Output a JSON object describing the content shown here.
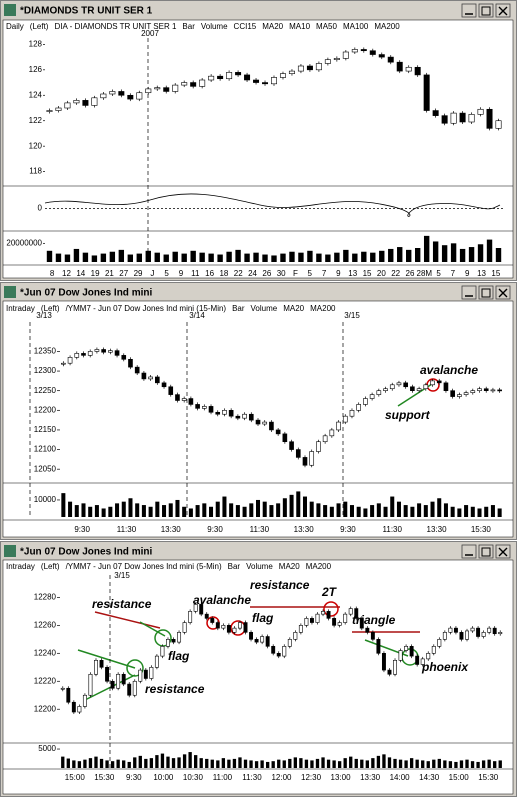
{
  "windows": [
    {
      "title": "*DIAMONDS TR UNIT SER 1",
      "header": [
        {
          "text": "Daily",
          "color": "#000000"
        },
        {
          "text": "(Left)",
          "color": "#000000"
        },
        {
          "text": "DIA - DIAMONDS TR UNIT SER 1",
          "color": "#000000"
        },
        {
          "text": "Bar",
          "color": "#000000"
        },
        {
          "text": "Volume",
          "color": "#000000"
        },
        {
          "text": "CCI15",
          "color": "#000000"
        },
        {
          "text": "MA20",
          "color": "#cc0000"
        },
        {
          "text": "MA10",
          "color": "#008800"
        },
        {
          "text": "MA50",
          "color": "#888800"
        },
        {
          "text": "MA100",
          "color": "#0000cc"
        },
        {
          "text": "MA200",
          "color": "#cc00cc"
        }
      ],
      "period_labels": [
        "2007"
      ],
      "ylim": [
        117.5,
        128.5
      ],
      "yticks": [
        118,
        120,
        122,
        124,
        126,
        128
      ],
      "cci_tick": 0,
      "vlim": [
        0,
        30000000
      ],
      "vtick": 20000000,
      "xlabels": [
        "8",
        "12",
        "14",
        "19",
        "21",
        "27",
        "29",
        "J",
        "5",
        "9",
        "11",
        "16",
        "18",
        "22",
        "24",
        "26",
        "30",
        "F",
        "5",
        "7",
        "9",
        "13",
        "15",
        "20",
        "22",
        "26",
        "28M",
        "5",
        "7",
        "9",
        "13",
        "15"
      ],
      "prices": [
        122.8,
        123.0,
        123.4,
        123.6,
        123.2,
        123.8,
        124.1,
        124.3,
        124.0,
        123.7,
        124.2,
        124.5,
        124.6,
        124.3,
        124.8,
        125.0,
        124.7,
        125.2,
        125.5,
        125.3,
        125.8,
        125.6,
        125.2,
        125.0,
        124.9,
        125.4,
        125.7,
        125.9,
        126.3,
        126.0,
        126.5,
        126.8,
        126.9,
        127.4,
        127.6,
        127.5,
        127.2,
        127.0,
        126.6,
        125.9,
        126.2,
        125.6,
        122.8,
        122.4,
        121.8,
        122.6,
        121.9,
        122.5,
        122.9,
        121.4,
        122.0
      ],
      "volumes": [
        12000000,
        9000000,
        8000000,
        14000000,
        10000000,
        7000000,
        9000000,
        11000000,
        13000000,
        8000000,
        9000000,
        12000000,
        10000000,
        8000000,
        11000000,
        9000000,
        12000000,
        10000000,
        9000000,
        8000000,
        11000000,
        13000000,
        9000000,
        10000000,
        8000000,
        7000000,
        9000000,
        11000000,
        10000000,
        12000000,
        9000000,
        8000000,
        10000000,
        13000000,
        9000000,
        11000000,
        10000000,
        12000000,
        14000000,
        16000000,
        13000000,
        15000000,
        28000000,
        22000000,
        18000000,
        20000000,
        14000000,
        16000000,
        19000000,
        24000000,
        15000000
      ],
      "annotations": []
    },
    {
      "title": "*Jun 07  Dow Jones Ind mini",
      "header": [
        {
          "text": "Intraday",
          "color": "#000000"
        },
        {
          "text": "(Left)",
          "color": "#000000"
        },
        {
          "text": "/YMM7 - Jun 07 Dow Jones Ind mini (15-Min)",
          "color": "#000000"
        },
        {
          "text": "Bar",
          "color": "#000000"
        },
        {
          "text": "Volume",
          "color": "#000000"
        },
        {
          "text": "MA20",
          "color": "#cc0000"
        },
        {
          "text": "MA200",
          "color": "#cc0000"
        }
      ],
      "period_labels": [
        "3/13",
        "3/14",
        "3/15"
      ],
      "ylim": [
        12025,
        12425
      ],
      "yticks": [
        12050,
        12100,
        12150,
        12200,
        12250,
        12300,
        12350
      ],
      "vlim": [
        0,
        17600
      ],
      "vtick": 10000,
      "xlabels": [
        "9:30",
        "11:30",
        "13:30",
        "9:30",
        "11:30",
        "13:30",
        "9:30",
        "11:30",
        "13:30",
        "15:30"
      ],
      "prices": [
        12320,
        12335,
        12345,
        12340,
        12350,
        12355,
        12348,
        12352,
        12340,
        12330,
        12310,
        12295,
        12280,
        12285,
        12270,
        12260,
        12240,
        12225,
        12230,
        12215,
        12205,
        12210,
        12195,
        12190,
        12200,
        12185,
        12180,
        12190,
        12175,
        12165,
        12170,
        12150,
        12140,
        12120,
        12100,
        12080,
        12060,
        12095,
        12120,
        12135,
        12150,
        12170,
        12185,
        12200,
        12215,
        12230,
        12240,
        12250,
        12255,
        12265,
        12270,
        12260,
        12250,
        12255,
        12265,
        12275,
        12270,
        12250,
        12235,
        12240,
        12245,
        12250,
        12255,
        12250,
        12252,
        12250
      ],
      "volumes": [
        14000,
        9000,
        7000,
        8000,
        6000,
        7000,
        5000,
        6000,
        8000,
        9000,
        11000,
        8000,
        7000,
        6000,
        9000,
        7000,
        8000,
        10000,
        6000,
        5000,
        7000,
        8000,
        6000,
        9000,
        12000,
        8000,
        7000,
        6000,
        8000,
        10000,
        9000,
        7000,
        8000,
        11000,
        13000,
        15000,
        12000,
        9000,
        8000,
        7000,
        6000,
        8000,
        9000,
        7000,
        6000,
        5000,
        7000,
        8000,
        6000,
        12000,
        9000,
        7000,
        6000,
        8000,
        7000,
        9000,
        11000,
        8000,
        6000,
        5000,
        7000,
        6000,
        5000,
        6000,
        7000,
        5000
      ],
      "annotations": [
        {
          "text": "avalanche",
          "color": "#cc0000"
        },
        {
          "text": "support",
          "color": "#228822"
        }
      ]
    },
    {
      "title": "*Jun 07  Dow Jones Ind mini",
      "header": [
        {
          "text": "Intraday",
          "color": "#000000"
        },
        {
          "text": "(Left)",
          "color": "#000000"
        },
        {
          "text": "/YMM7 - Jun 07 Dow Jones Ind mini (5-Min)",
          "color": "#000000"
        },
        {
          "text": "Bar",
          "color": "#000000"
        },
        {
          "text": "Volume",
          "color": "#000000"
        },
        {
          "text": "MA20",
          "color": "#cc0000"
        },
        {
          "text": "MA200",
          "color": "#cc0000"
        }
      ],
      "period_labels": [
        "3/15"
      ],
      "ylim": [
        12178,
        12296
      ],
      "yticks": [
        12200,
        12220,
        12240,
        12260,
        12280
      ],
      "vlim": [
        0,
        5800
      ],
      "vtick": 5000,
      "xlabels": [
        "15:00",
        "15:30",
        "9:30",
        "10:00",
        "10:30",
        "11:00",
        "11:30",
        "12:00",
        "12:30",
        "13:00",
        "13:30",
        "14:00",
        "14:30",
        "15:00",
        "15:30"
      ],
      "prices": [
        12215,
        12205,
        12198,
        12202,
        12210,
        12225,
        12235,
        12230,
        12220,
        12215,
        12225,
        12218,
        12210,
        12220,
        12228,
        12222,
        12230,
        12238,
        12245,
        12250,
        12248,
        12255,
        12262,
        12270,
        12275,
        12268,
        12265,
        12262,
        12258,
        12260,
        12255,
        12258,
        12262,
        12255,
        12250,
        12248,
        12252,
        12245,
        12240,
        12238,
        12245,
        12250,
        12255,
        12260,
        12265,
        12262,
        12268,
        12270,
        12265,
        12260,
        12262,
        12268,
        12272,
        12265,
        12258,
        12255,
        12250,
        12240,
        12228,
        12225,
        12235,
        12242,
        12245,
        12238,
        12232,
        12236,
        12240,
        12245,
        12250,
        12255,
        12258,
        12255,
        12250,
        12256,
        12258,
        12252,
        12255,
        12258,
        12254,
        12255
      ],
      "volumes": [
        3000,
        2500,
        2000,
        1800,
        2200,
        2600,
        3000,
        2400,
        2000,
        1800,
        2200,
        2000,
        1600,
        2800,
        3200,
        2400,
        2600,
        3400,
        3800,
        3000,
        2600,
        2800,
        3600,
        4200,
        3400,
        2600,
        2400,
        2200,
        2000,
        2600,
        2200,
        2400,
        2800,
        2200,
        2000,
        1800,
        2000,
        1600,
        1800,
        2200,
        2000,
        2400,
        2800,
        2600,
        2200,
        2000,
        2400,
        2800,
        2200,
        2000,
        1800,
        2600,
        3000,
        2400,
        2200,
        2000,
        2600,
        3200,
        3600,
        2800,
        2400,
        2200,
        2000,
        2600,
        2200,
        2000,
        1800,
        2200,
        2400,
        2000,
        1800,
        1600,
        2000,
        2200,
        1800,
        1600,
        2000,
        2200,
        1800,
        2000
      ],
      "annotations": [
        {
          "text": "resistance",
          "color": "#aa1111"
        },
        {
          "text": "avalanche",
          "color": "#aa1111"
        },
        {
          "text": "resistance",
          "color": "#aa1111"
        },
        {
          "text": "2T",
          "color": "#aa1111"
        },
        {
          "text": "flag",
          "color": "#aa1111"
        },
        {
          "text": "flag",
          "color": "#228822"
        },
        {
          "text": "resistance",
          "color": "#aa1111"
        },
        {
          "text": "triangle",
          "color": "#228822"
        },
        {
          "text": "phoenix",
          "color": "#228822"
        }
      ]
    }
  ]
}
